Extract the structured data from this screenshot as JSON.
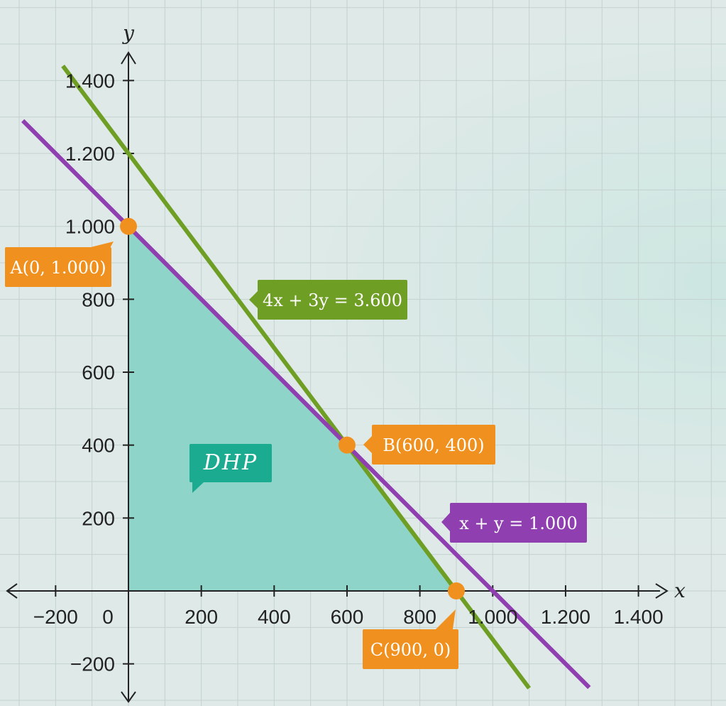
{
  "chart_data": {
    "type": "line",
    "title": "",
    "xlabel": "x",
    "ylabel": "y",
    "xlim": [
      -300,
      1400
    ],
    "ylim": [
      -300,
      1400
    ],
    "x_ticks": [
      -200,
      200,
      400,
      600,
      800,
      1000,
      1200,
      1400
    ],
    "x_tick_labels": [
      "−200",
      "200",
      "400",
      "600",
      "800",
      "1.000",
      "1.200",
      "1.400"
    ],
    "y_ticks": [
      -200,
      200,
      400,
      600,
      800,
      1000,
      1200,
      1400
    ],
    "y_tick_labels": [
      "−200",
      "200",
      "400",
      "600",
      "800",
      "1.000",
      "1.200",
      "1.400"
    ],
    "origin_label": "0",
    "grid": true,
    "series": [
      {
        "name": "line-green",
        "label": "4x + 3y = 3.600",
        "color": "#6f9e24",
        "a": 4,
        "b": 3,
        "c": 3600,
        "x_range": [
          -180,
          1100
        ]
      },
      {
        "name": "line-purple",
        "label": "x + y = 1.000",
        "color": "#8f3fb0",
        "a": 1,
        "b": 1,
        "c": 1000,
        "x_range": [
          -290,
          1265
        ]
      }
    ],
    "feasible_region": {
      "label": "DHP",
      "color": "#8fd4c8",
      "vertices": [
        [
          0,
          0
        ],
        [
          0,
          1000
        ],
        [
          600,
          400
        ],
        [
          900,
          0
        ]
      ]
    },
    "points": [
      {
        "name": "point-a",
        "label": "A(0, 1.000)",
        "x": 0,
        "y": 1000
      },
      {
        "name": "point-b",
        "label": "B(600, 400)",
        "x": 600,
        "y": 400
      },
      {
        "name": "point-c",
        "label": "C(900, 0)",
        "x": 900,
        "y": 0
      }
    ],
    "colors": {
      "point": "#f0901e",
      "region_label": "#1aab91",
      "axis": "#222222",
      "grid": "#c3d2cf"
    }
  }
}
